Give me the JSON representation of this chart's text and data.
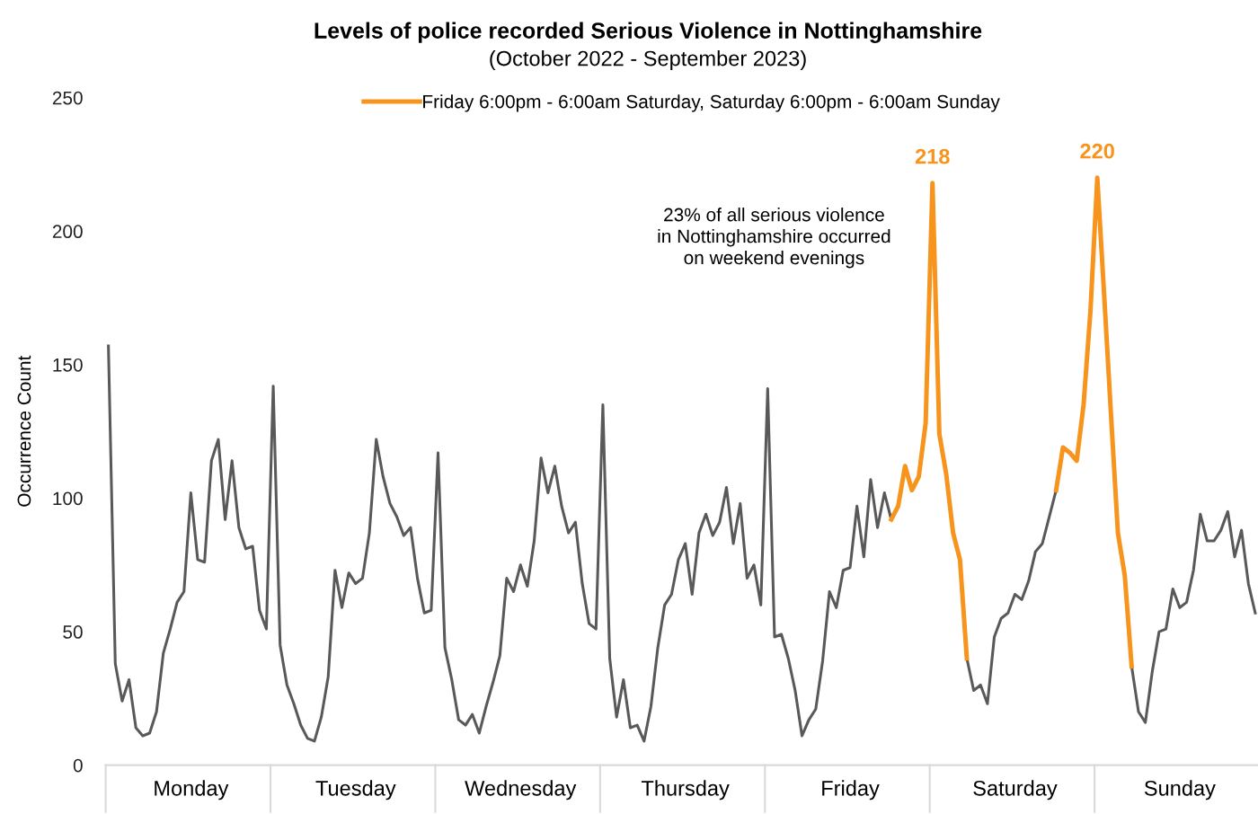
{
  "chart_data": {
    "type": "line",
    "title": "Levels of police recorded Serious Violence in Nottinghamshire",
    "subtitle": "(October 2022 - September 2023)",
    "ylabel": "Occurrence Count",
    "categories": [
      null,
      null,
      null,
      null,
      null,
      null,
      null,
      null,
      null,
      null,
      null,
      null,
      "Monday",
      null,
      null,
      null,
      null,
      null,
      null,
      null,
      null,
      null,
      null,
      null,
      null,
      null,
      null,
      null,
      null,
      null,
      null,
      null,
      null,
      null,
      null,
      null,
      "Tuesday",
      null,
      null,
      null,
      null,
      null,
      null,
      null,
      null,
      null,
      null,
      null,
      null,
      null,
      null,
      null,
      null,
      null,
      null,
      null,
      null,
      null,
      null,
      null,
      "Wednesday",
      null,
      null,
      null,
      null,
      null,
      null,
      null,
      null,
      null,
      null,
      null,
      null,
      null,
      null,
      null,
      null,
      null,
      null,
      null,
      null,
      null,
      null,
      null,
      "Thursday",
      null,
      null,
      null,
      null,
      null,
      null,
      null,
      null,
      null,
      null,
      null,
      null,
      null,
      null,
      null,
      null,
      null,
      null,
      null,
      null,
      null,
      null,
      null,
      "Friday",
      null,
      null,
      null,
      null,
      null,
      null,
      null,
      null,
      null,
      null,
      null,
      null,
      null,
      null,
      null,
      null,
      null,
      null,
      null,
      null,
      null,
      null,
      null,
      "Saturday",
      null,
      null,
      null,
      null,
      null,
      null,
      null,
      null,
      null,
      null,
      null,
      null,
      null,
      null,
      null,
      null,
      null,
      null,
      null,
      null,
      null,
      null,
      null,
      "Sunday",
      null,
      null,
      null,
      null,
      null,
      null,
      null,
      null,
      null,
      null,
      null
    ],
    "series": [
      {
        "color": "#595959",
        "values": [
          157,
          38,
          24,
          32,
          14,
          11,
          12,
          20,
          42,
          51,
          61,
          65,
          102,
          77,
          76,
          114,
          122,
          92,
          114,
          89,
          81,
          82,
          58,
          51,
          142,
          45,
          30,
          23,
          15,
          10,
          9,
          18,
          33,
          73,
          59,
          72,
          68,
          70,
          87,
          122,
          108,
          98,
          93,
          86,
          89,
          70,
          57,
          58,
          117,
          44,
          32,
          17,
          15,
          19,
          12,
          22,
          31,
          41,
          70,
          65,
          75,
          67,
          84,
          115,
          102,
          112,
          97,
          87,
          91,
          68,
          53,
          51,
          135,
          40,
          18,
          32,
          14,
          15,
          9,
          22,
          44,
          60,
          64,
          77,
          83,
          64,
          87,
          94,
          86,
          91,
          104,
          83,
          98,
          70,
          75,
          60,
          141,
          48,
          49,
          40,
          28,
          11,
          17,
          21,
          39,
          65,
          59,
          73,
          74,
          97,
          78,
          107,
          89,
          102,
          92,
          null,
          null,
          null,
          null,
          null,
          null,
          null,
          null,
          null,
          null,
          40,
          28,
          30,
          23,
          48,
          55,
          57,
          64,
          62,
          69,
          80,
          83,
          93,
          103,
          null,
          null,
          null,
          null,
          null,
          null,
          null,
          null,
          null,
          null,
          37,
          20,
          16,
          35,
          50,
          51,
          66,
          59,
          61,
          73,
          94,
          84,
          84,
          88,
          95,
          78,
          88,
          68,
          57
        ]
      },
      {
        "name": "Friday 6:00pm - 6:00am Saturday, Saturday 6:00pm - 6:00am Sunday",
        "color": "#f7941d",
        "values": [
          null,
          null,
          null,
          null,
          null,
          null,
          null,
          null,
          null,
          null,
          null,
          null,
          null,
          null,
          null,
          null,
          null,
          null,
          null,
          null,
          null,
          null,
          null,
          null,
          null,
          null,
          null,
          null,
          null,
          null,
          null,
          null,
          null,
          null,
          null,
          null,
          null,
          null,
          null,
          null,
          null,
          null,
          null,
          null,
          null,
          null,
          null,
          null,
          null,
          null,
          null,
          null,
          null,
          null,
          null,
          null,
          null,
          null,
          null,
          null,
          null,
          null,
          null,
          null,
          null,
          null,
          null,
          null,
          null,
          null,
          null,
          null,
          null,
          null,
          null,
          null,
          null,
          null,
          null,
          null,
          null,
          null,
          null,
          null,
          null,
          null,
          null,
          null,
          null,
          null,
          null,
          null,
          null,
          null,
          null,
          null,
          null,
          null,
          null,
          null,
          null,
          null,
          null,
          null,
          null,
          null,
          null,
          null,
          null,
          null,
          null,
          null,
          null,
          null,
          92,
          97,
          112,
          103,
          108,
          128,
          218,
          124,
          109,
          87,
          77,
          40,
          null,
          null,
          null,
          null,
          null,
          null,
          null,
          null,
          null,
          null,
          null,
          null,
          103,
          119,
          117,
          114,
          135,
          170,
          220,
          176,
          131,
          87,
          71,
          37,
          null,
          null,
          null,
          null,
          null,
          null,
          null,
          null,
          null,
          null,
          null,
          null,
          null,
          null,
          null,
          null,
          null,
          null
        ]
      }
    ],
    "ylim": [
      0,
      250
    ],
    "yticks": [
      0,
      50,
      100,
      150,
      200,
      250
    ],
    "grid": false,
    "legend": "top",
    "annotations": [
      {
        "text": "218",
        "y": 218
      },
      {
        "text": "220",
        "y": 220
      },
      "23% of all serious violence\nin Nottinghamshire occurred\non weekend evenings"
    ]
  }
}
